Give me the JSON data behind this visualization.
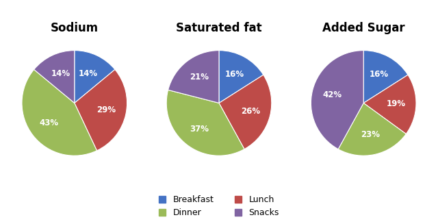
{
  "charts": [
    {
      "title": "Sodium",
      "values": [
        14,
        29,
        43,
        14
      ],
      "labels": [
        "14%",
        "29%",
        "43%",
        "14%"
      ],
      "startangle": 90
    },
    {
      "title": "Saturated fat",
      "values": [
        16,
        26,
        37,
        21
      ],
      "labels": [
        "16%",
        "26%",
        "37%",
        "21%"
      ],
      "startangle": 90
    },
    {
      "title": "Added Sugar",
      "values": [
        16,
        19,
        23,
        42
      ],
      "labels": [
        "16%",
        "19%",
        "23%",
        "42%"
      ],
      "startangle": 90
    }
  ],
  "colors": [
    "#4472C4",
    "#BE4B48",
    "#9BBB59",
    "#8064A2"
  ],
  "legend_labels": [
    "Breakfast",
    "Lunch",
    "Dinner",
    "Snacks"
  ],
  "legend_colors": [
    "#4472C4",
    "#BE4B48",
    "#9BBB59",
    "#8064A2"
  ],
  "background_color": "#FFFFFF",
  "title_fontsize": 12,
  "label_fontsize": 8.5,
  "legend_fontsize": 9
}
